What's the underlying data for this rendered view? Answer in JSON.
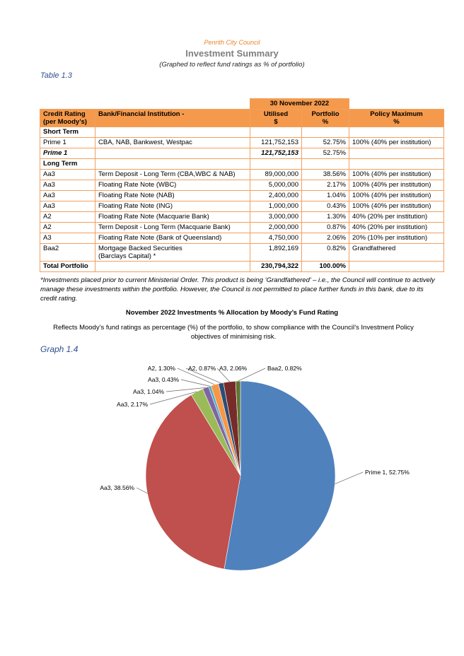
{
  "header": {
    "council": "Penrith City Council",
    "title": "Investment Summary",
    "subtitle": "(Graphed to reflect fund ratings as % of portfolio)"
  },
  "table_label": "Table 1.3",
  "table": {
    "date": "30 November 2022",
    "columns": {
      "rating": "Credit Rating",
      "rating2": "(per Moody’s)",
      "institution": "Bank/Financial Institution -",
      "utilised": "Utilised",
      "utilised2": "$",
      "portfolio": "Portfolio",
      "portfolio2": "%",
      "policy": "Policy Maximum",
      "policy2": "%"
    },
    "short_term": "Short Term",
    "short_rows": [
      {
        "rating": "Prime 1",
        "institution": "CBA, NAB, Bankwest, Westpac",
        "utilised": "121,752,153",
        "portfolio": "52.75%",
        "policy": "100% (40% per institution)"
      }
    ],
    "short_subtotal": {
      "rating": "Prime 1",
      "utilised": "121,752,153",
      "portfolio": "52.75%"
    },
    "long_term": "Long Term",
    "long_rows": [
      {
        "rating": "Aa3",
        "institution": "Term Deposit - Long Term (CBA,WBC & NAB)",
        "utilised": "89,000,000",
        "portfolio": "38.56%",
        "policy": "100% (40% per institution)"
      },
      {
        "rating": "Aa3",
        "institution": "Floating Rate Note (WBC)",
        "utilised": "5,000,000",
        "portfolio": "2.17%",
        "policy": "100% (40% per institution)"
      },
      {
        "rating": "Aa3",
        "institution": "Floating Rate Note (NAB)",
        "utilised": "2,400,000",
        "portfolio": "1.04%",
        "policy": "100% (40% per institution)"
      },
      {
        "rating": "Aa3",
        "institution": "Floating Rate Note (ING)",
        "utilised": "1,000,000",
        "portfolio": "0.43%",
        "policy": "100% (40% per institution)"
      },
      {
        "rating": "A2",
        "institution": "Floating Rate Note (Macquarie Bank)",
        "utilised": "3,000,000",
        "portfolio": "1.30%",
        "policy": "40% (20% per institution)"
      },
      {
        "rating": "A2",
        "institution": "Term Deposit - Long Term (Macquarie Bank)",
        "utilised": "2,000,000",
        "portfolio": "0.87%",
        "policy": "40% (20% per institution)"
      },
      {
        "rating": "A3",
        "institution": "Floating Rate Note (Bank of Queensland)",
        "utilised": "4,750,000",
        "portfolio": "2.06%",
        "policy": "20% (10% per institution)"
      }
    ],
    "baa2_row": {
      "rating": "Baa2",
      "institution": "Mortgage Backed Securities",
      "institution2": "(Barclays Capital) *",
      "utilised": "1,892,169",
      "portfolio": "0.82%",
      "policy": "Grandfathered"
    },
    "total": {
      "label": "Total Portfolio",
      "utilised": "230,794,322",
      "portfolio": "100.00%"
    }
  },
  "footnote": "*Investments placed prior to current Ministerial Order. This product is being ‘Grandfathered’ – i.e., the Council will continue to actively manage these investments within the portfolio. However, the Council is not permitted to place further funds in this bank, due to its credit rating.",
  "chart_title": "November 2022 Investments % Allocation by Moody’s Fund Rating",
  "chart_desc": "Reflects Moody’s fund ratings as percentage (%) of the portfolio, to show compliance with the Council’s Investment Policy objectives of minimising risk.",
  "graph_label": "Graph 1.4",
  "chart_data": {
    "type": "pie",
    "slices": [
      {
        "label": "Prime 1, 52.75%",
        "value": 52.75,
        "color": "#4f81bd"
      },
      {
        "label": "Aa3, 38.56%",
        "value": 38.56,
        "color": "#c0504d"
      },
      {
        "label": "Aa3, 2.17%",
        "value": 2.17,
        "color": "#9bbb59"
      },
      {
        "label": "Aa3, 1.04%",
        "value": 1.04,
        "color": "#8064a2"
      },
      {
        "label": "Aa3, 0.43%",
        "value": 0.43,
        "color": "#4bacc6"
      },
      {
        "label": "A2, 1.30%",
        "value": 1.3,
        "color": "#f79646"
      },
      {
        "label": "A2, 0.87%",
        "value": 0.87,
        "color": "#2c4d75"
      },
      {
        "label": "A3, 2.06%",
        "value": 2.06,
        "color": "#772c2a"
      },
      {
        "label": "Baa2, 0.82%",
        "value": 0.82,
        "color": "#5f7530"
      }
    ]
  }
}
